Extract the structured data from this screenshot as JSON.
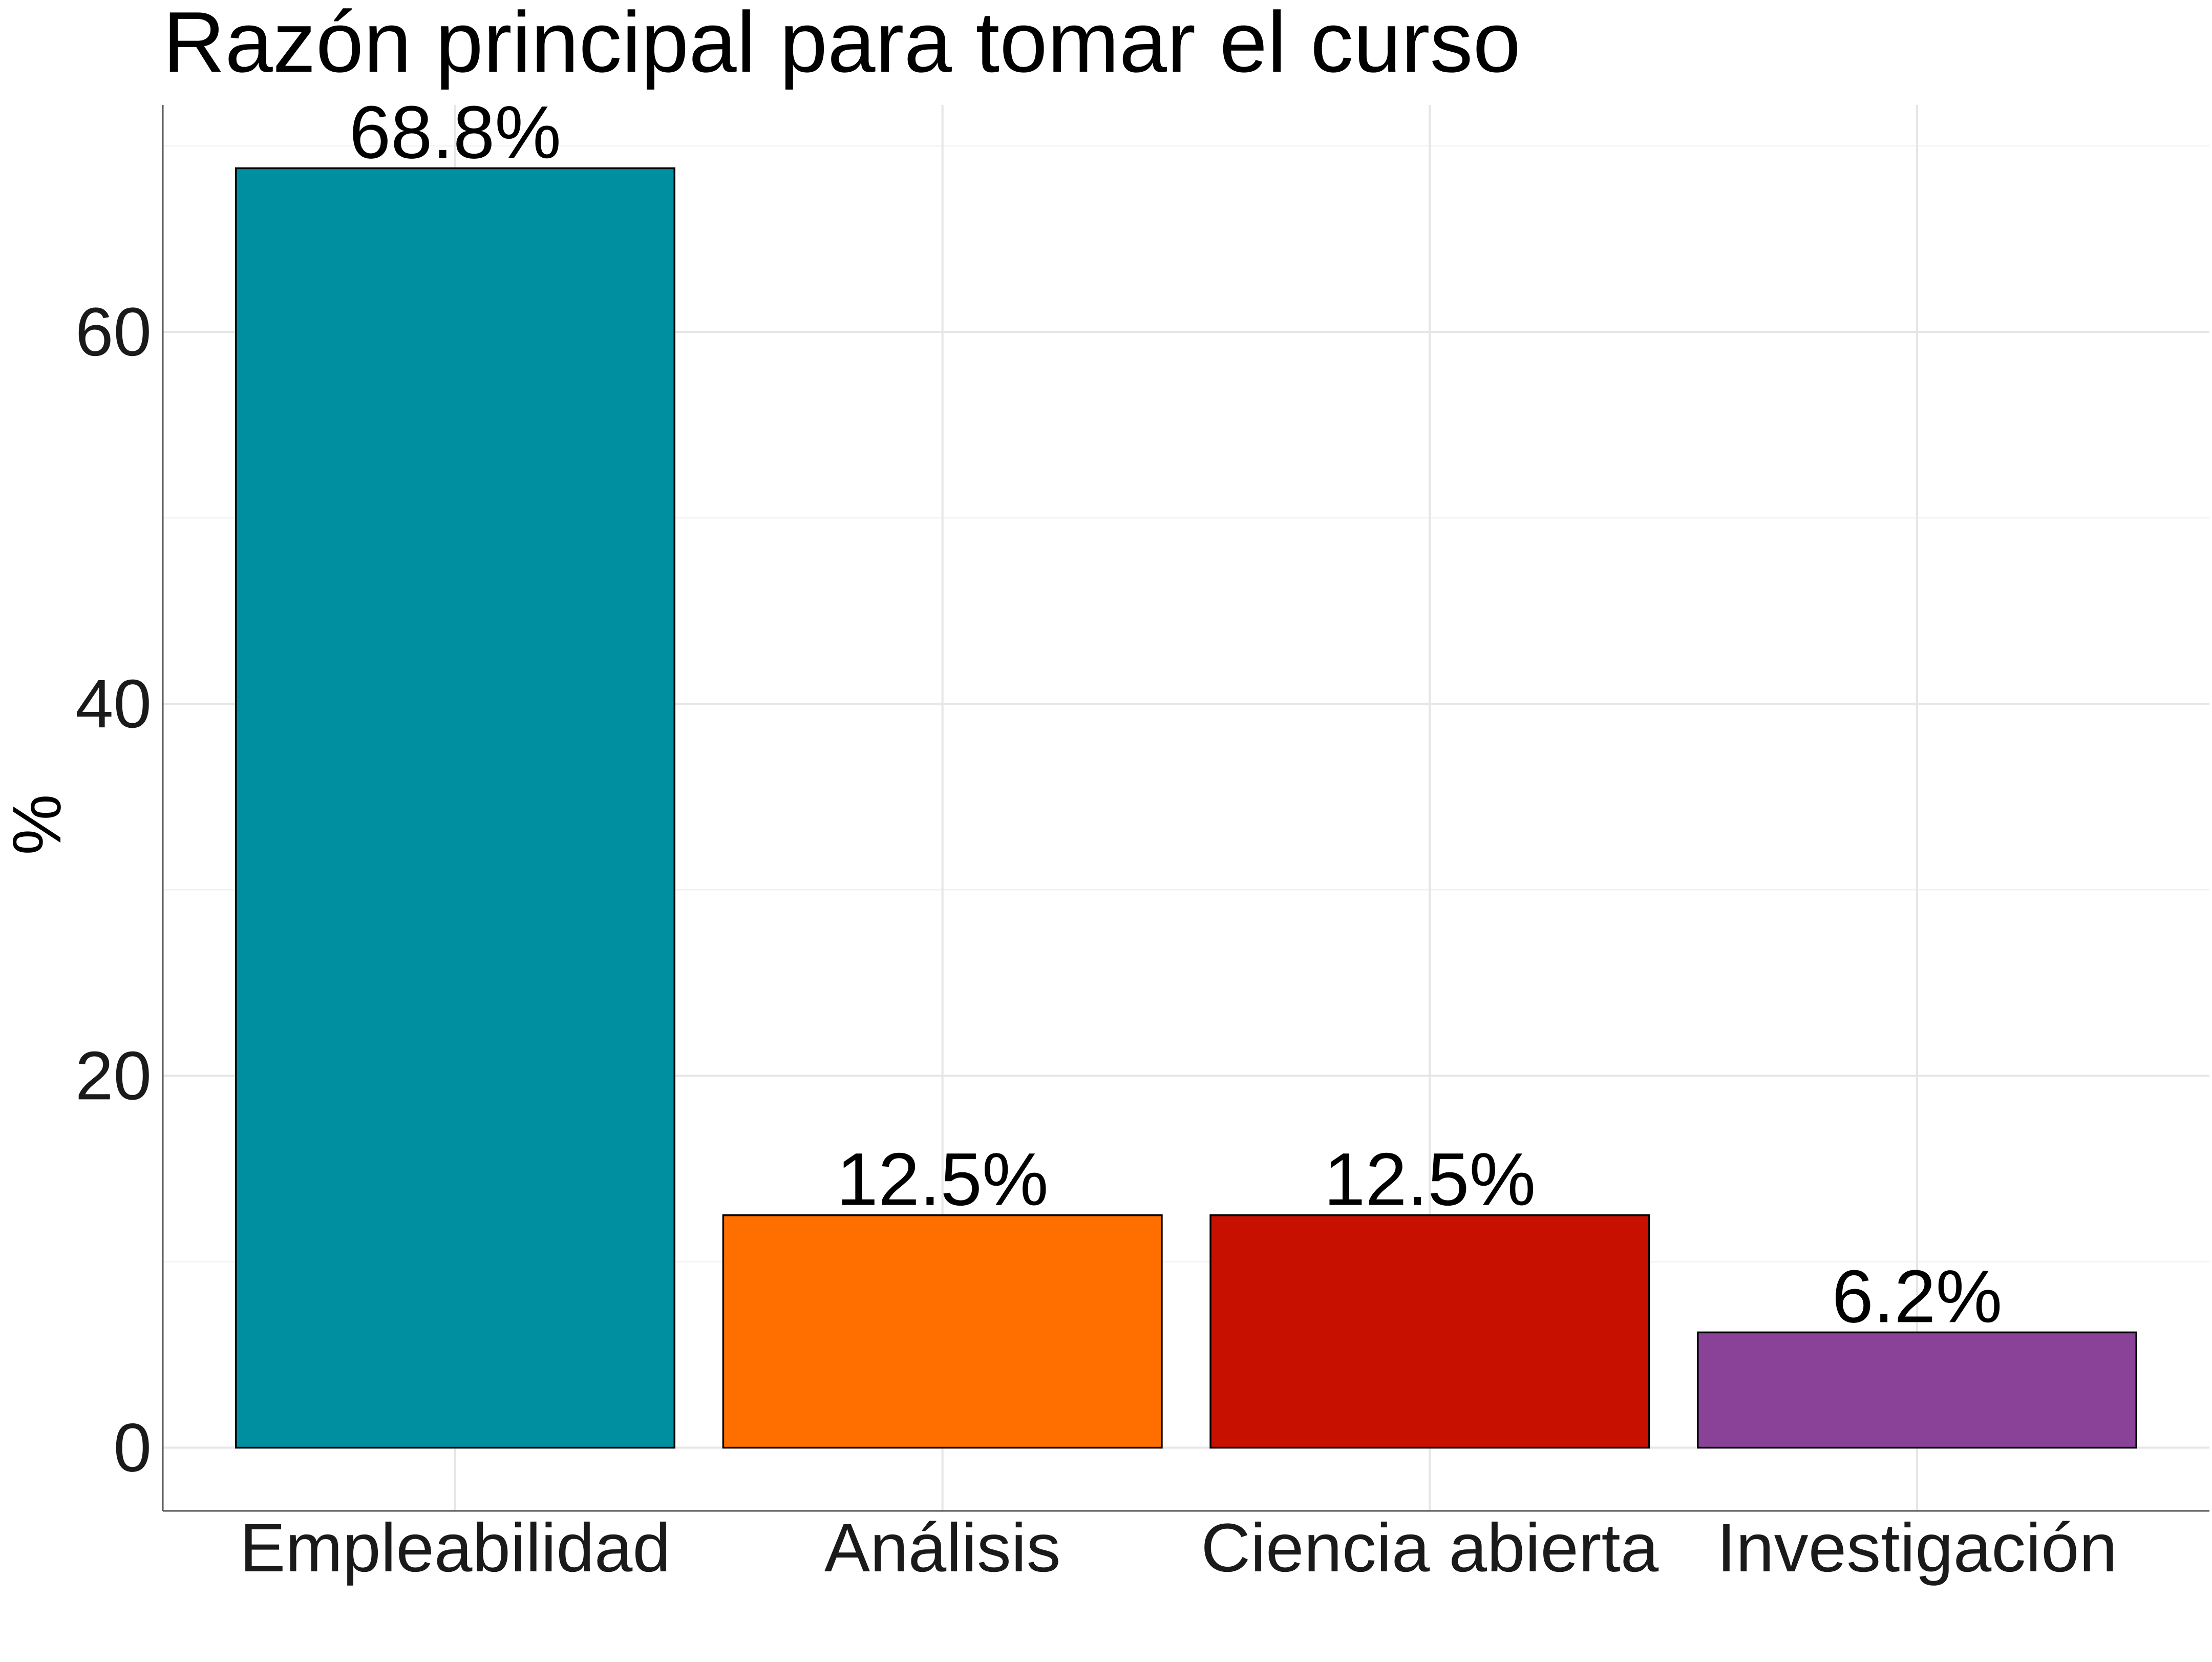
{
  "chart_data": {
    "type": "bar",
    "title": "Razón principal para tomar el curso",
    "xlabel": "",
    "ylabel": "%",
    "categories": [
      "Empleabilidad",
      "Análisis",
      "Ciencia abierta",
      "Investigación"
    ],
    "values": [
      68.8,
      12.5,
      12.5,
      6.2
    ],
    "data_labels": [
      "68.8%",
      "12.5%",
      "12.5%",
      "6.2%"
    ],
    "colors": [
      "#008fa0",
      "#ff6f00",
      "#c71000",
      "#8a4198"
    ],
    "ylim": [
      -3.4,
      72.2
    ],
    "yticks": [
      0,
      20,
      40,
      60
    ],
    "ytick_labels": [
      "0",
      "20",
      "40",
      "60"
    ],
    "grid": true,
    "legend": "none"
  }
}
